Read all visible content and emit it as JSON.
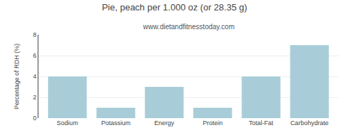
{
  "chart_data": {
    "type": "bar",
    "title": "Pie, peach per 1.000 oz (or 28.35 g)",
    "subtitle": "www.dietandfitnesstoday.com",
    "categories": [
      "Sodium",
      "Potassium",
      "Energy",
      "Protein",
      "Total-Fat",
      "Carbohydrate"
    ],
    "values": [
      4,
      1,
      3,
      1,
      4,
      7
    ],
    "color": "#a8cdd8",
    "ylabel": "Percentage of RDH (%)",
    "ylim": [
      0,
      8
    ],
    "yticks": [
      0,
      2,
      4,
      6,
      8
    ],
    "grid": true
  }
}
